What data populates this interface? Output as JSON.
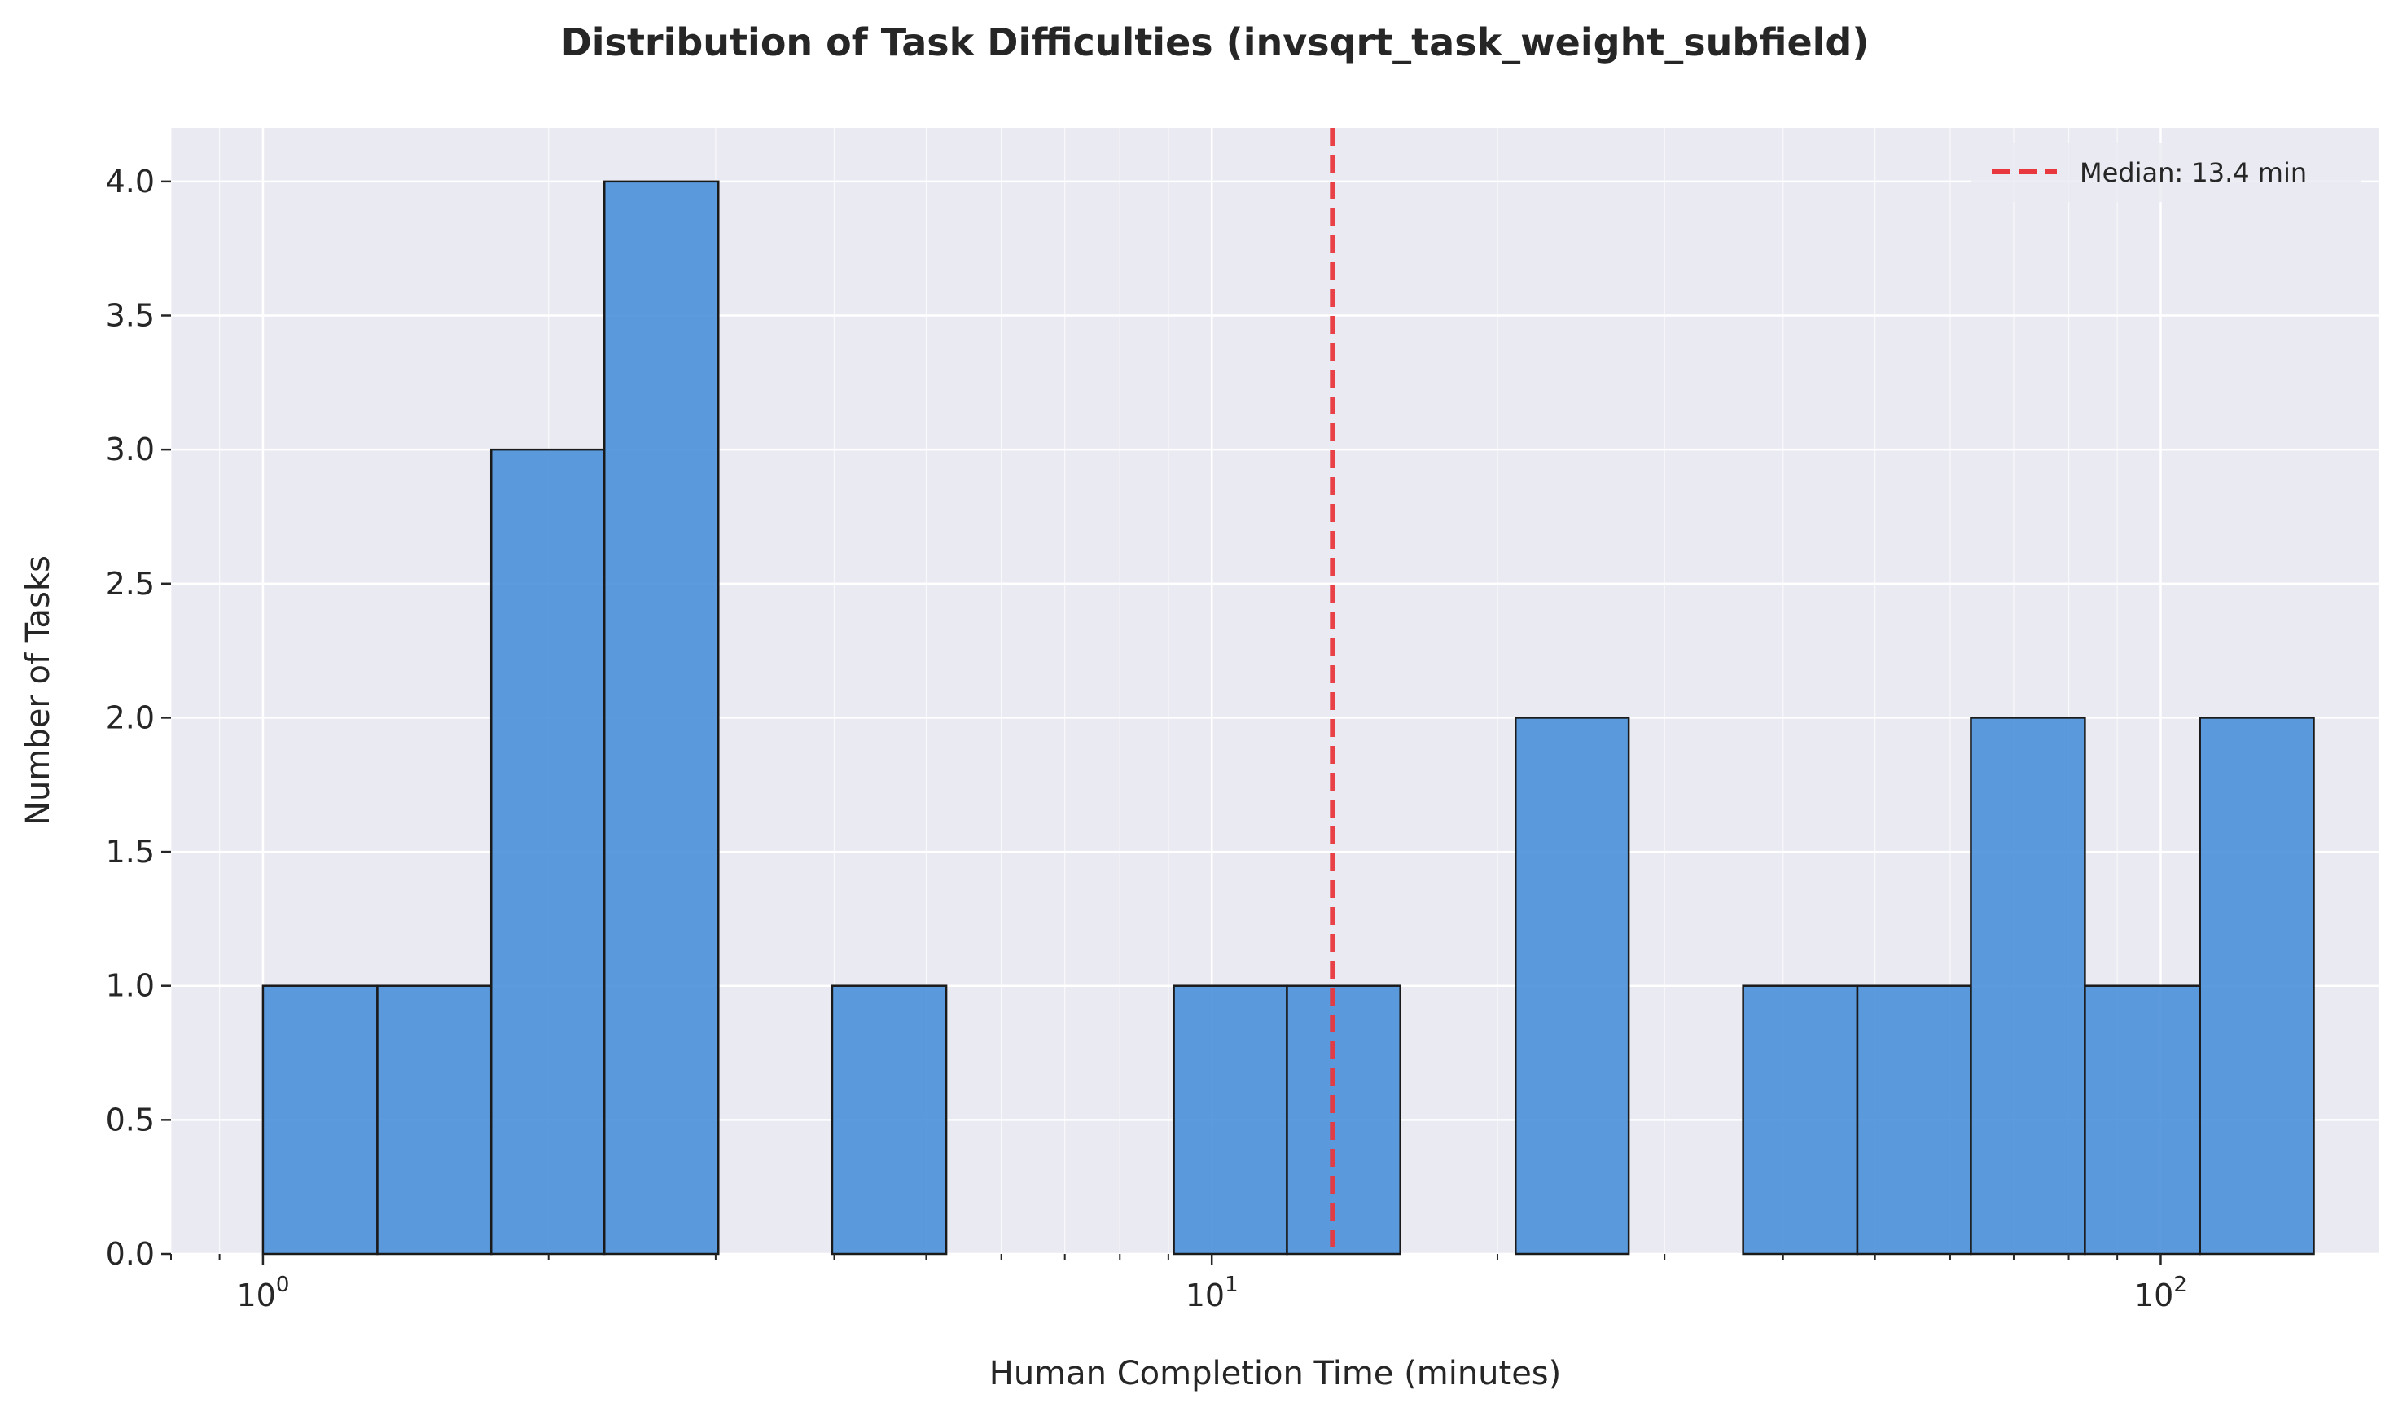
{
  "chart_data": {
    "type": "bar",
    "title": "Distribution of Task Difficulties (invsqrt_task_weight_subfield)",
    "xlabel": "Human Completion Time (minutes)",
    "ylabel": "Number of Tasks",
    "x_scale": "log",
    "xlim": [
      0.8,
      170
    ],
    "ylim": [
      0,
      4.2
    ],
    "y_ticks": [
      "0.0",
      "0.5",
      "1.0",
      "1.5",
      "2.0",
      "2.5",
      "3.0",
      "3.5",
      "4.0"
    ],
    "x_major_ticks": [
      {
        "value": 1,
        "base": "10",
        "exp": "0"
      },
      {
        "value": 10,
        "base": "10",
        "exp": "1"
      },
      {
        "value": 100,
        "base": "10",
        "exp": "2"
      }
    ],
    "bin_edges": [
      1.0,
      1.32,
      1.74,
      2.29,
      3.02,
      3.98,
      5.25,
      6.92,
      9.12,
      12.0,
      15.8,
      20.9,
      27.5,
      36.3,
      47.9,
      63.1,
      83.2,
      110,
      145
    ],
    "counts": [
      1,
      1,
      3,
      4,
      0,
      1,
      0,
      0,
      1,
      1,
      0,
      2,
      0,
      1,
      1,
      2,
      1,
      2
    ],
    "median": 13.4,
    "legend": {
      "label": "Median: 13.4 min",
      "position": "upper right"
    },
    "grid": true,
    "colors": {
      "bar": "#4a90d9",
      "edge": "#1a1a1a",
      "median": "#e8383d",
      "plot_bg": "#eaeaf2"
    }
  }
}
